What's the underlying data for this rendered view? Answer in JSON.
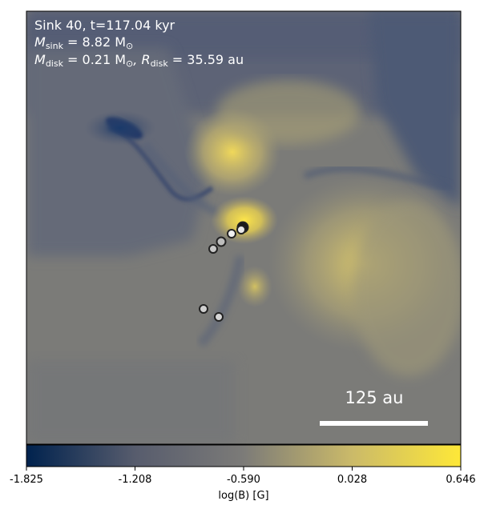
{
  "annotation": {
    "line1": "Sink 40, t=117.04 kyr",
    "line2_prefix": "M",
    "line2_sub": "sink",
    "line2_rest": " = 8.82 M",
    "line2_sun": "⊙",
    "line3_prefix": "M",
    "line3_sub": "disk",
    "line3_mid": " = 0.21 M",
    "line3_sun": "⊙",
    "line3_sep": ", R",
    "line3_sub2": "disk",
    "line3_rest": " = 35.59 au"
  },
  "scale_bar": {
    "label": "125 au"
  },
  "colorbar": {
    "label": "log(B) [G]",
    "ticks": [
      "-1.825",
      "-1.208",
      "-0.590",
      "0.028",
      "0.646"
    ],
    "colors": [
      "#00224e",
      "#575c6d",
      "#7c7b78",
      "#cbba69",
      "#fee838"
    ]
  },
  "sinks": [
    {
      "fill": "#1a1a1a"
    },
    {
      "fill": "#e8e8e8"
    },
    {
      "fill": "#bdbdbd"
    },
    {
      "fill": "#f0f0f0"
    },
    {
      "fill": "#c8c8c8"
    },
    {
      "fill": "#d0d0d0"
    },
    {
      "fill": "#d6d6d6"
    }
  ]
}
